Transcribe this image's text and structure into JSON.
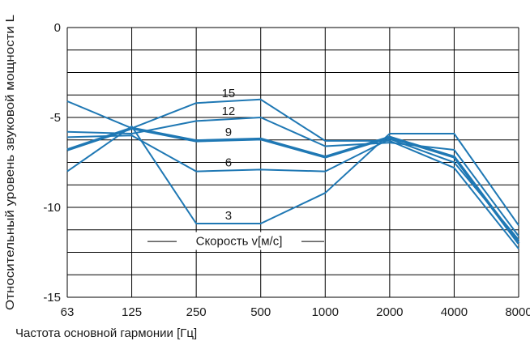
{
  "chart_data": {
    "type": "line",
    "xlabel": "Частота основной гармонии [Гц]",
    "ylabel": "Относительный уровень звуковой мощности  L",
    "categories": [
      "63",
      "125",
      "250",
      "500",
      "1000",
      "2000",
      "4000",
      "8000"
    ],
    "ylim": [
      -15,
      0
    ],
    "yticks": [
      0,
      -5,
      -10,
      -15
    ],
    "grid": true,
    "line_color": "#1f78b4",
    "series": [
      {
        "name": "15",
        "values": [
          -4.1,
          -5.6,
          -4.2,
          -4.0,
          -6.3,
          -6.3,
          -7.8,
          -12.3
        ],
        "bold": false
      },
      {
        "name": "12",
        "values": [
          -5.8,
          -5.9,
          -5.2,
          -5.0,
          -6.6,
          -6.4,
          -6.8,
          -11.6
        ],
        "bold": false
      },
      {
        "name": "9",
        "values": [
          -6.8,
          -5.6,
          -6.3,
          -6.2,
          -7.2,
          -6.1,
          -7.2,
          -12.0
        ],
        "bold": true
      },
      {
        "name": "6",
        "values": [
          -6.1,
          -6.0,
          -8.0,
          -7.9,
          -8.0,
          -6.2,
          -7.5,
          -11.8
        ],
        "bold": false
      },
      {
        "name": "3",
        "values": [
          -8.0,
          -5.5,
          -10.9,
          -10.9,
          -9.2,
          -5.9,
          -5.9,
          -11.0
        ],
        "bold": false
      }
    ],
    "annotation": "Скорость v[м/с]"
  }
}
